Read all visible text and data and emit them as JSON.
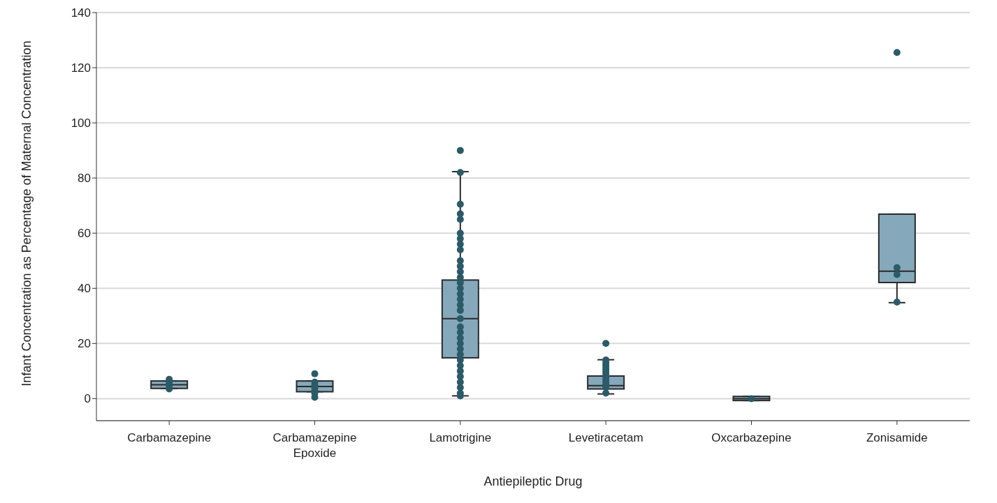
{
  "chart_data": {
    "type": "box",
    "xlabel": "Antiepileptic Drug",
    "ylabel": "Infant Concentration as Percentage of Maternal Concentration",
    "categories": [
      "Carbamazepine",
      "Carbamazepine Epoxide",
      "Lamotrigine",
      "Levetiracetam",
      "Oxcarbazepine",
      "Zonisamide"
    ],
    "series": [
      {
        "color": "#85a9bb",
        "boxes": [
          {
            "low": 3.7,
            "q1": 3.7,
            "median": 5,
            "q3": 6.4,
            "high": 6.4
          },
          {
            "low": 2.5,
            "q1": 2.5,
            "median": 4.4,
            "q3": 6.4,
            "high": 6.4
          },
          {
            "low": 1,
            "q1": 14.8,
            "median": 29,
            "q3": 43,
            "high": 82.3
          },
          {
            "low": 1.7,
            "q1": 3.5,
            "median": 4.7,
            "q3": 8.2,
            "high": 14.1
          },
          {
            "low": -0.7,
            "q1": -0.7,
            "median": 0,
            "q3": 0.8,
            "high": 0.8
          },
          {
            "low": 34.8,
            "q1": 42.1,
            "median": 46.2,
            "q3": 66.9,
            "high": 66.9
          }
        ]
      },
      {
        "type": "scatter",
        "color": "#2b5a68",
        "x": [
          "Carbamazepine",
          "Carbamazepine",
          "Carbamazepine",
          "Carbamazepine",
          "Carbamazepine",
          "Carbamazepine Epoxide",
          "Carbamazepine Epoxide",
          "Carbamazepine Epoxide",
          "Carbamazepine Epoxide",
          "Carbamazepine Epoxide",
          "Carbamazepine Epoxide",
          "Carbamazepine Epoxide",
          "Lamotrigine",
          "Lamotrigine",
          "Lamotrigine",
          "Lamotrigine",
          "Lamotrigine",
          "Lamotrigine",
          "Lamotrigine",
          "Lamotrigine",
          "Lamotrigine",
          "Lamotrigine",
          "Lamotrigine",
          "Lamotrigine",
          "Lamotrigine",
          "Lamotrigine",
          "Lamotrigine",
          "Lamotrigine",
          "Lamotrigine",
          "Lamotrigine",
          "Lamotrigine",
          "Lamotrigine",
          "Lamotrigine",
          "Lamotrigine",
          "Lamotrigine",
          "Lamotrigine",
          "Lamotrigine",
          "Lamotrigine",
          "Lamotrigine",
          "Lamotrigine",
          "Lamotrigine",
          "Lamotrigine",
          "Lamotrigine",
          "Lamotrigine",
          "Lamotrigine",
          "Lamotrigine",
          "Levetiracetam",
          "Levetiracetam",
          "Levetiracetam",
          "Levetiracetam",
          "Levetiracetam",
          "Levetiracetam",
          "Levetiracetam",
          "Levetiracetam",
          "Levetiracetam",
          "Levetiracetam",
          "Levetiracetam",
          "Levetiracetam",
          "Levetiracetam",
          "Oxcarbazepine",
          "Zonisamide",
          "Zonisamide",
          "Zonisamide",
          "Zonisamide"
        ],
        "values": [
          3.5,
          4,
          5,
          6,
          7,
          0.5,
          2,
          3,
          4,
          5,
          6,
          9,
          90,
          82,
          70.5,
          67,
          65,
          60,
          58,
          56,
          54,
          50,
          48,
          46,
          44,
          42,
          40,
          38,
          36,
          34,
          32,
          29,
          26,
          24,
          22,
          20,
          18,
          16,
          14,
          12,
          10,
          8,
          6,
          4,
          2,
          1,
          20,
          14,
          13,
          12,
          11,
          10,
          9,
          8,
          7,
          6,
          5,
          4,
          2,
          0,
          125.5,
          47.5,
          45,
          35
        ]
      }
    ],
    "marker": "circle",
    "ylim": [
      -8,
      140
    ],
    "yticks": [
      0,
      20,
      40,
      60,
      80,
      100,
      120,
      140
    ],
    "grid": "y"
  }
}
